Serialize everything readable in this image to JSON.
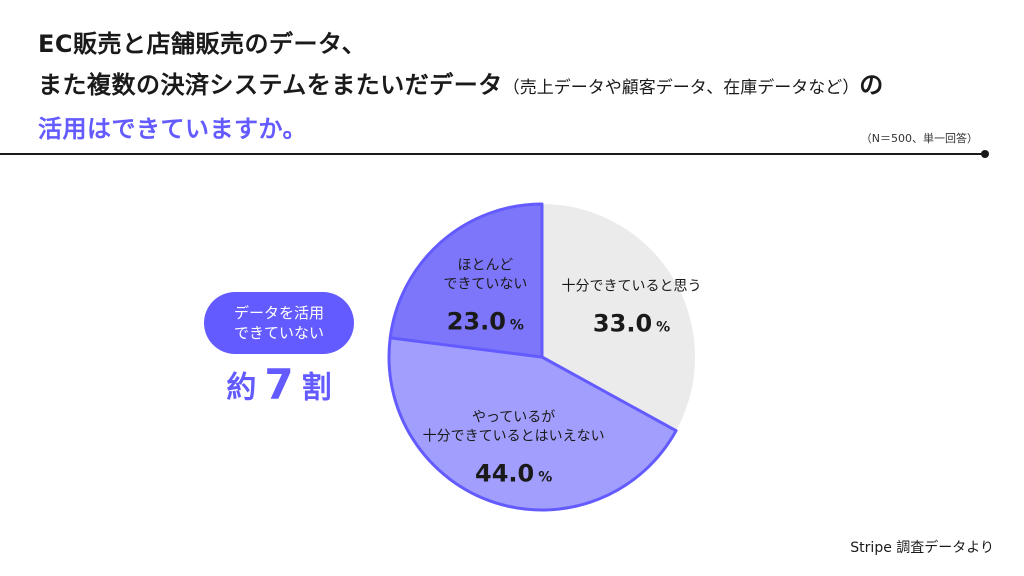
{
  "title": {
    "line1": "EC販売と店舗販売のデータ、",
    "line2_main": "また複数の決済システムをまたいだデータ",
    "line2_paren": "（売上データや顧客データ、在庫データなど）",
    "line2_tail": "の",
    "line3": "活用はできていますか。"
  },
  "note": "（N＝500、単一回答）",
  "callout": {
    "pill_line1": "データを活用",
    "pill_line2": "できていない",
    "prefix": "約",
    "number": "7",
    "suffix": "割"
  },
  "source": "Stripe 調査データより",
  "colors": {
    "accent": "#635bff",
    "slice_light_purple": "#a29efd",
    "slice_mid_purple": "#7d76fb",
    "slice_gray": "#ebebeb",
    "text": "#1a1a1a"
  },
  "chart_data": {
    "type": "pie",
    "start_angle_deg": 0,
    "direction": "clockwise",
    "slices": [
      {
        "label_lines": [
          "十分できていると思う"
        ],
        "value": 33.0,
        "value_text": "33.0",
        "unit": "%",
        "color": "#ebebeb",
        "highlighted": false
      },
      {
        "label_lines": [
          "やっているが",
          "十分できているとはいえない"
        ],
        "value": 44.0,
        "value_text": "44.0",
        "unit": "%",
        "color": "#a29efd",
        "highlighted": true
      },
      {
        "label_lines": [
          "ほとんど",
          "できていない"
        ],
        "value": 23.0,
        "value_text": "23.0",
        "unit": "%",
        "color": "#7d76fb",
        "highlighted": true
      }
    ]
  }
}
